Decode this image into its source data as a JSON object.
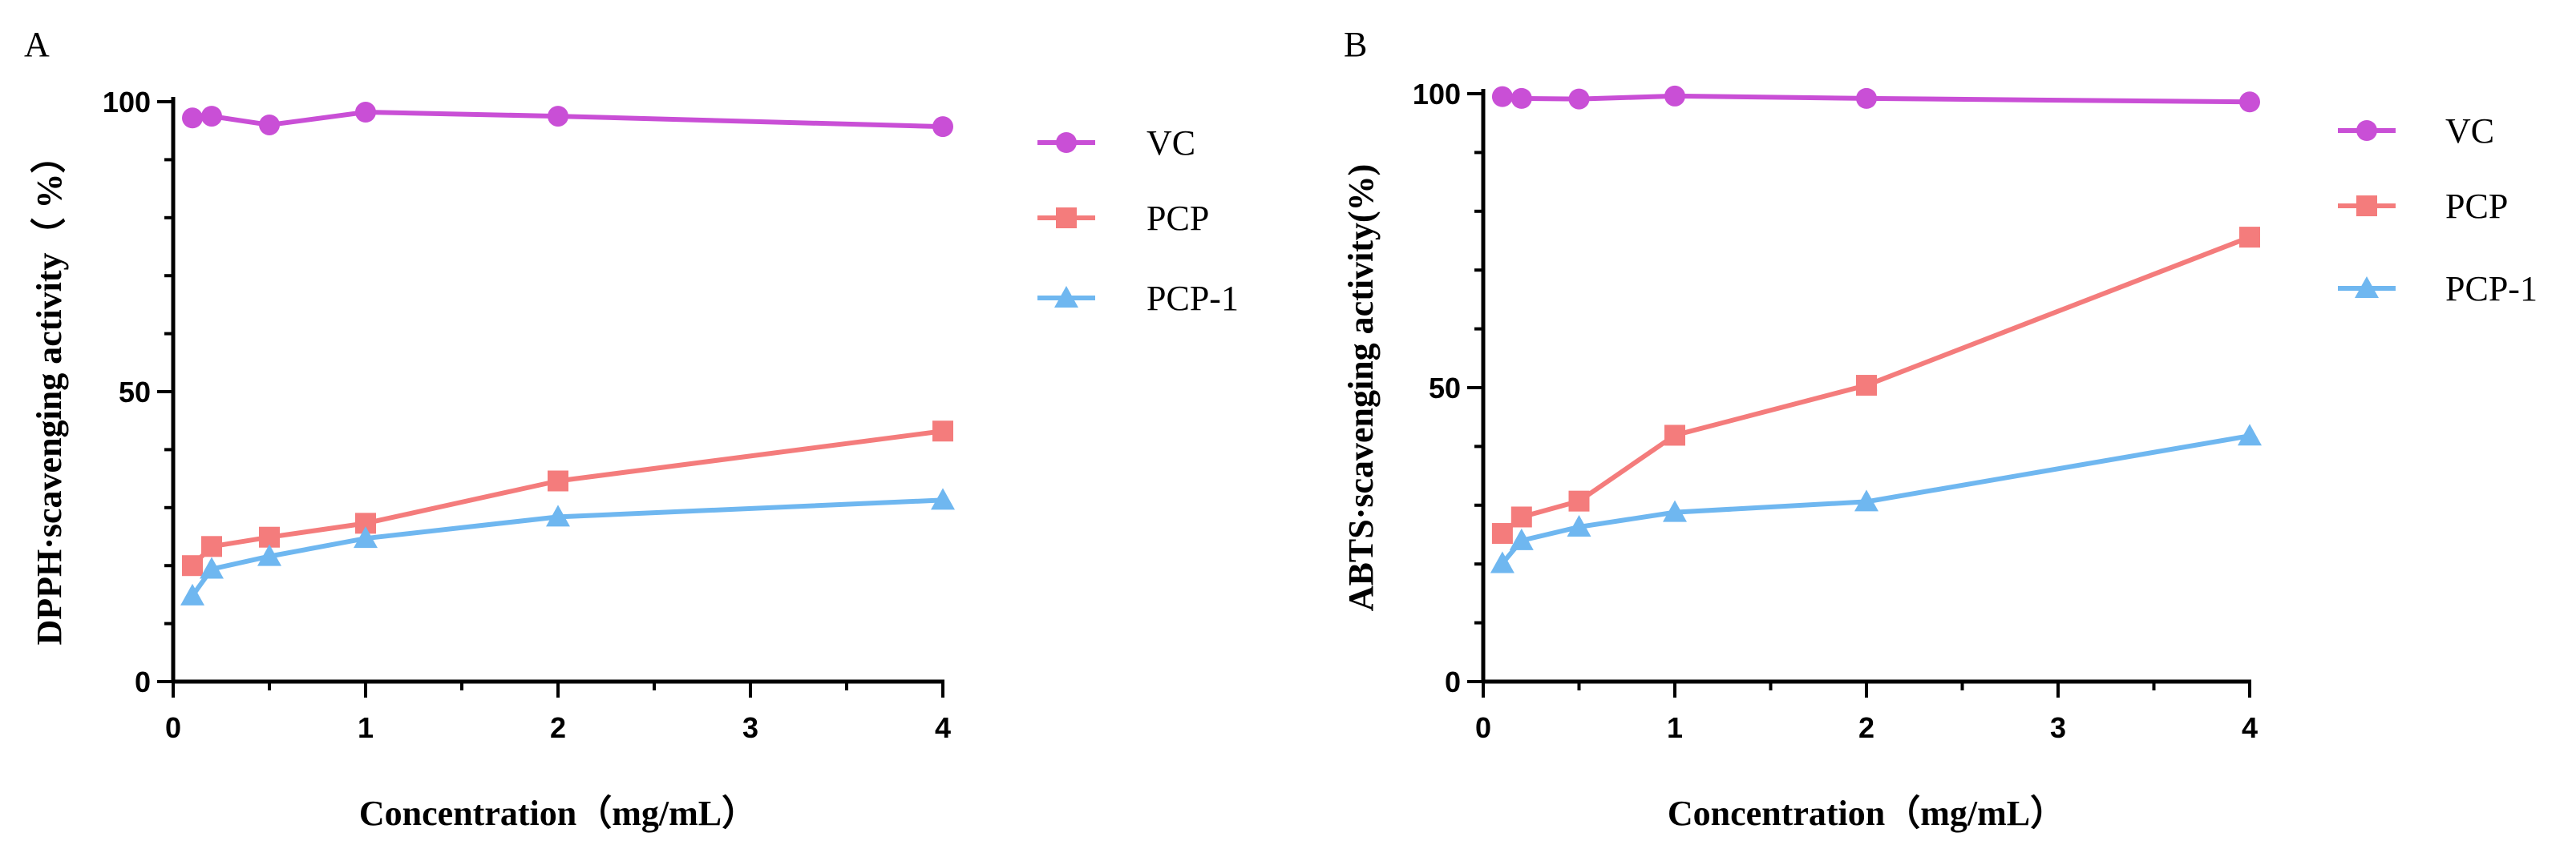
{
  "chart_data": [
    {
      "type": "line",
      "panel": "A",
      "title": "",
      "xlabel": "Concentration（mg/mL）",
      "ylabel": "DPPH·scavenging activity（ %）",
      "xlim": [
        0,
        4
      ],
      "ylim": [
        0,
        100
      ],
      "x_ticks": [
        0,
        1,
        2,
        3,
        4
      ],
      "y_ticks": [
        0,
        50,
        100
      ],
      "x_tick_labels": [
        "0",
        "1",
        "2",
        "3",
        "4"
      ],
      "y_tick_labels": [
        "0",
        "50",
        "100"
      ],
      "grid": false,
      "legend_position": "right",
      "x": [
        0.1,
        0.2,
        0.5,
        1,
        2,
        4
      ],
      "series": [
        {
          "name": "VC",
          "marker": "circle",
          "color": "#c94fd6",
          "values": [
            97.2,
            97.5,
            96.0,
            98.2,
            97.5,
            95.7
          ]
        },
        {
          "name": "PCP",
          "marker": "square",
          "color": "#f47c7c",
          "values": [
            20.0,
            23.3,
            24.9,
            27.3,
            34.6,
            43.2
          ]
        },
        {
          "name": "PCP-1",
          "marker": "triangle",
          "color": "#6fb7f0",
          "values": [
            14.8,
            19.4,
            21.6,
            24.7,
            28.4,
            31.3
          ]
        }
      ]
    },
    {
      "type": "line",
      "panel": "B",
      "title": "",
      "xlabel": "Concentration（mg/mL）",
      "ylabel": "ABTS·scavenging activity(%)",
      "xlim": [
        0,
        4
      ],
      "ylim": [
        0,
        100
      ],
      "x_ticks": [
        0,
        1,
        2,
        3,
        4
      ],
      "y_ticks": [
        0,
        50,
        100
      ],
      "x_tick_labels": [
        "0",
        "1",
        "2",
        "3",
        "4"
      ],
      "y_tick_labels": [
        "0",
        "50",
        "100"
      ],
      "grid": false,
      "legend_position": "right",
      "x": [
        0.1,
        0.2,
        0.5,
        1,
        2,
        4
      ],
      "series": [
        {
          "name": "VC",
          "marker": "circle",
          "color": "#c94fd6",
          "values": [
            99.5,
            99.2,
            99.1,
            99.6,
            99.2,
            98.6
          ]
        },
        {
          "name": "PCP",
          "marker": "square",
          "color": "#f47c7c",
          "values": [
            25.2,
            28.0,
            30.7,
            41.9,
            50.4,
            75.6
          ]
        },
        {
          "name": "PCP-1",
          "marker": "triangle",
          "color": "#6fb7f0",
          "values": [
            20.1,
            24.0,
            26.3,
            28.8,
            30.6,
            41.8
          ]
        }
      ]
    }
  ]
}
